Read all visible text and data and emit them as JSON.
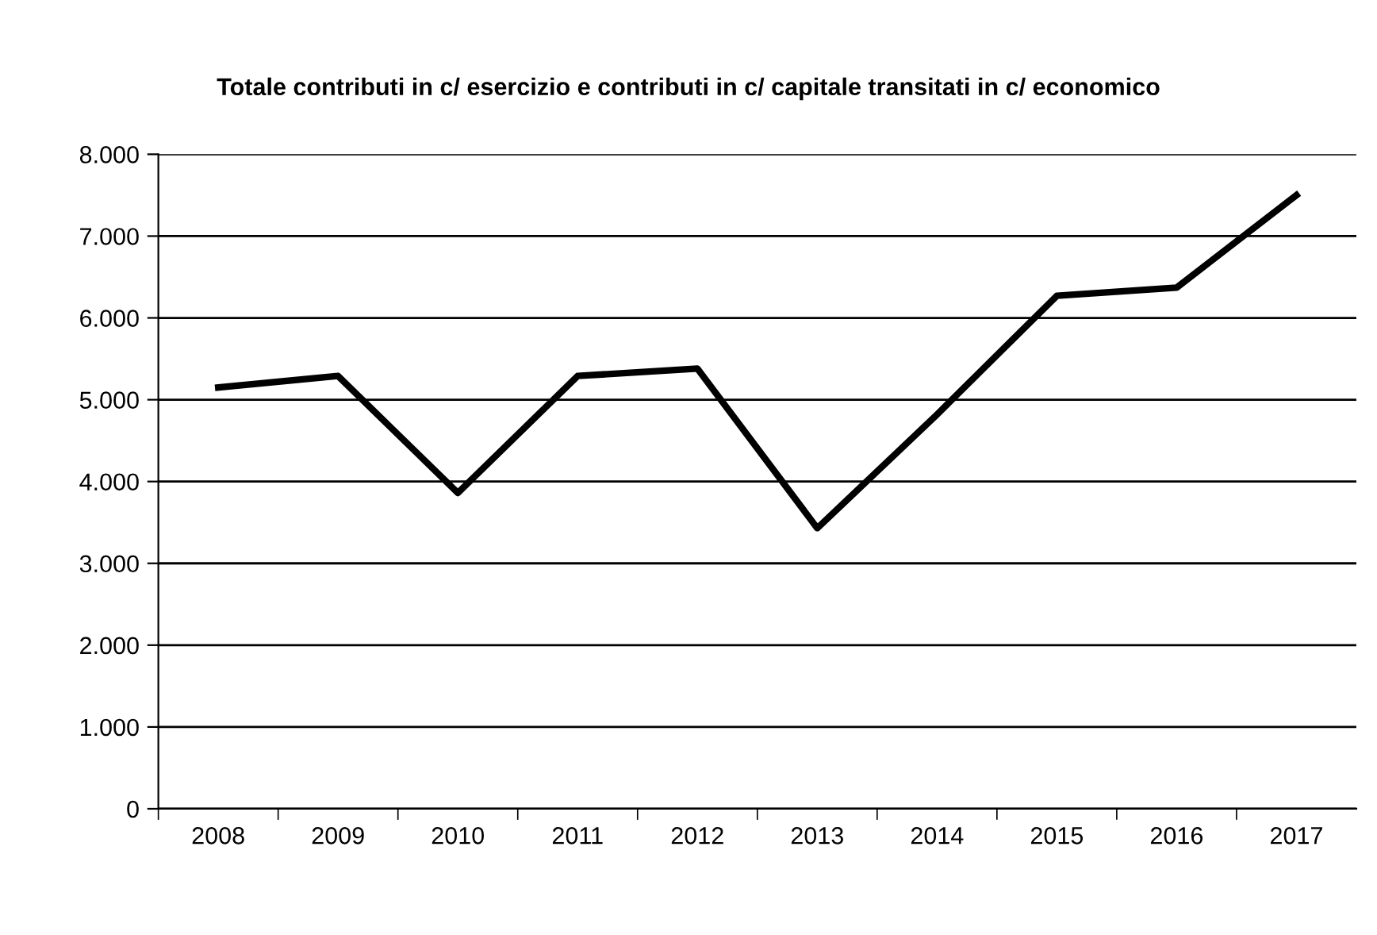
{
  "chart_data": {
    "type": "line",
    "title": "Totale contributi in c/ esercizio e contributi in c/ capitale transitati in c/ economico",
    "categories": [
      "2008",
      "2009",
      "2010",
      "2011",
      "2012",
      "2013",
      "2014",
      "2015",
      "2016",
      "2017"
    ],
    "series": [
      {
        "color": "#000000",
        "values": [
          5150,
          5290,
          3860,
          5290,
          5380,
          3430,
          4820,
          6270,
          6370,
          7500
        ]
      }
    ],
    "ylim": [
      0,
      8000
    ],
    "yticks": [
      {
        "value": 0,
        "label": "0"
      },
      {
        "value": 1000,
        "label": "1.000"
      },
      {
        "value": 2000,
        "label": "2.000"
      },
      {
        "value": 3000,
        "label": "3.000"
      },
      {
        "value": 4000,
        "label": "4.000"
      },
      {
        "value": 5000,
        "label": "5.000"
      },
      {
        "value": 6000,
        "label": "6.000"
      },
      {
        "value": 7000,
        "label": "7.000"
      },
      {
        "value": 8000,
        "label": "8.000"
      }
    ],
    "grid": "y",
    "marker": "none",
    "line_style": "solid"
  }
}
